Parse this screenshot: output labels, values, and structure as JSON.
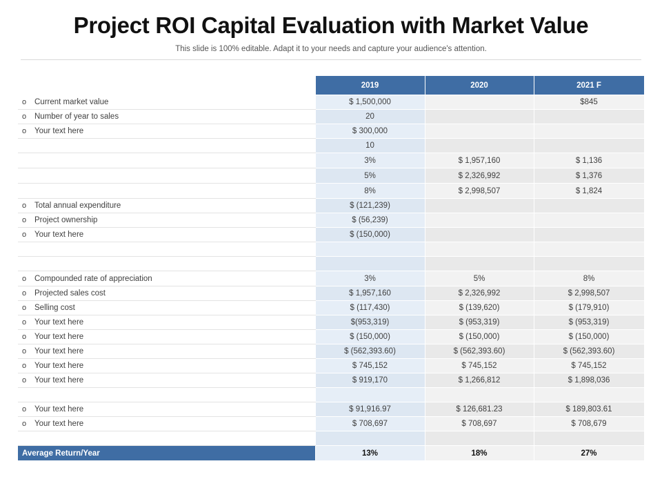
{
  "header": {
    "title": "Project ROI Capital Evaluation with Market Value",
    "subtitle": "This slide is 100% editable. Adapt it to your needs and capture your audience's attention."
  },
  "table": {
    "bullet": "o",
    "columns": [
      "2019",
      "2020",
      "2021  F"
    ],
    "rows": [
      {
        "label": "Current market value",
        "values": [
          "$ 1,500,000",
          "",
          "$845"
        ]
      },
      {
        "label": "Number of year to sales",
        "values": [
          "20",
          "",
          ""
        ]
      },
      {
        "label": "Your text here",
        "values": [
          "$ 300,000",
          "",
          ""
        ]
      },
      {
        "label": "",
        "values": [
          "10",
          "",
          ""
        ]
      },
      {
        "label": "",
        "values": [
          "3%",
          "$ 1,957,160",
          "$ 1,136"
        ]
      },
      {
        "label": "",
        "values": [
          "5%",
          "$ 2,326,992",
          "$ 1,376"
        ]
      },
      {
        "label": "",
        "values": [
          "8%",
          "$ 2,998,507",
          "$ 1,824"
        ]
      },
      {
        "label": "Total annual expenditure",
        "values": [
          "$ (121,239)",
          "",
          ""
        ]
      },
      {
        "label": "Project ownership",
        "values": [
          "$ (56,239)",
          "",
          ""
        ]
      },
      {
        "label": "Your text here",
        "values": [
          "$ (150,000)",
          "",
          ""
        ]
      },
      {
        "label": "",
        "values": [
          "",
          "",
          ""
        ]
      },
      {
        "label": "",
        "values": [
          "",
          "",
          ""
        ]
      },
      {
        "label": "Compounded rate of appreciation",
        "values": [
          "3%",
          "5%",
          "8%"
        ]
      },
      {
        "label": "Projected sales cost",
        "values": [
          "$ 1,957,160",
          "$ 2,326,992",
          "$ 2,998,507"
        ]
      },
      {
        "label": "Selling cost",
        "values": [
          "$ (117,430)",
          "$ (139,620)",
          "$ (179,910)"
        ]
      },
      {
        "label": "Your text here",
        "values": [
          "$(953,319)",
          "$ (953,319)",
          "$ (953,319)"
        ]
      },
      {
        "label": "Your text here",
        "values": [
          "$ (150,000)",
          "$ (150,000)",
          "$ (150,000)"
        ]
      },
      {
        "label": "Your text here",
        "values": [
          "$ (562,393.60)",
          "$ (562,393.60)",
          "$ (562,393.60)"
        ]
      },
      {
        "label": "Your text here",
        "values": [
          "$ 745,152",
          "$ 745,152",
          "$ 745,152"
        ]
      },
      {
        "label": "Your text here",
        "values": [
          "$ 919,170",
          "$ 1,266,812",
          "$ 1,898,036"
        ]
      },
      {
        "label": "",
        "values": [
          "",
          "",
          ""
        ]
      },
      {
        "label": "Your text here",
        "values": [
          "$ 91,916.97",
          "$ 126,681.23",
          "$ 189,803.61"
        ]
      },
      {
        "label": "Your text here",
        "values": [
          "$ 708,697",
          "$ 708,697",
          "$ 708,679"
        ]
      },
      {
        "label": "",
        "values": [
          "",
          "",
          ""
        ]
      }
    ],
    "footer": {
      "label": "Average Return/Year",
      "values": [
        "13%",
        "18%",
        "27%"
      ]
    }
  },
  "colors": {
    "header_blue": "#3f6da4",
    "col1_fill": "#e6eef7",
    "col_fill": "#f2f2f2"
  }
}
